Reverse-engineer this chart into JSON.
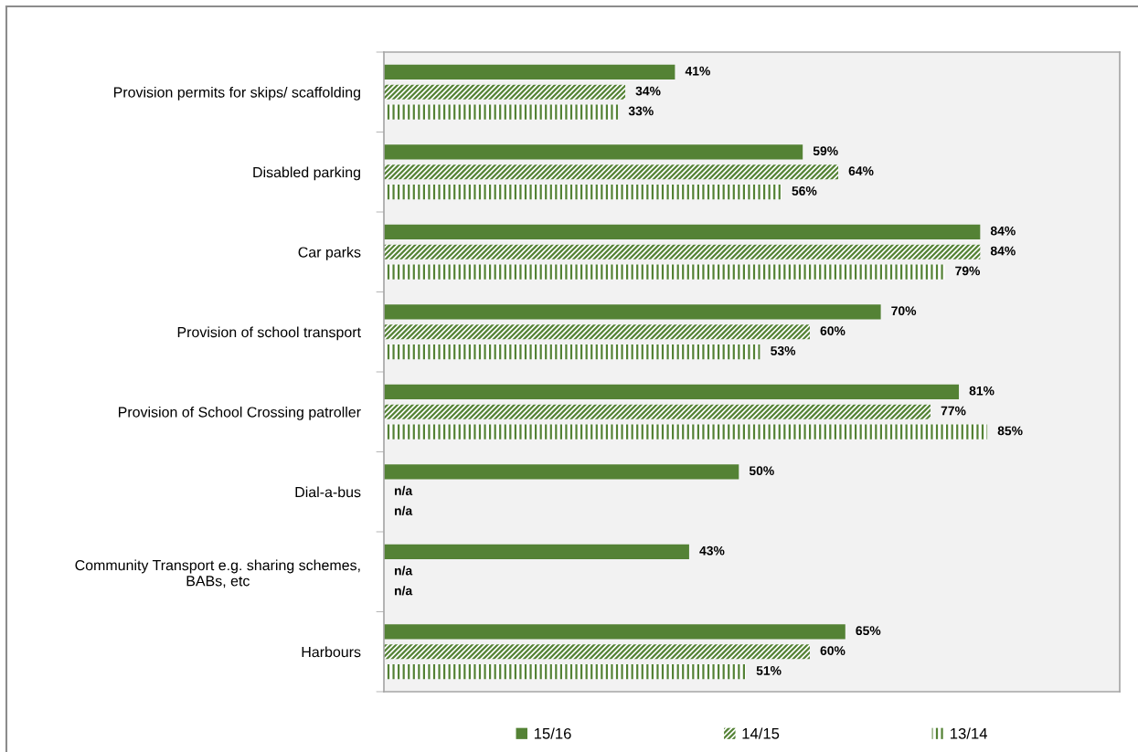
{
  "chart_data": {
    "type": "bar",
    "orientation": "horizontal",
    "categories": [
      "Provision permits for skips/ scaffolding",
      "Disabled parking",
      "Car parks",
      "Provision of school transport",
      "Provision of School Crossing patroller",
      "Dial-a-bus",
      "Community Transport e.g. sharing schemes,\nBABs, etc",
      "Harbours"
    ],
    "series": [
      {
        "name": "15/16",
        "color": "#548235",
        "values": [
          41,
          59,
          84,
          70,
          81,
          50,
          43,
          65
        ],
        "value_labels": [
          "41%",
          "59%",
          "84%",
          "70%",
          "81%",
          "50%",
          "43%",
          "65%"
        ]
      },
      {
        "name": "14/15",
        "color": "#548235",
        "values": [
          34,
          64,
          84,
          60,
          77,
          null,
          null,
          60
        ],
        "value_labels": [
          "34%",
          "64%",
          "84%",
          "60%",
          "77%",
          "n/a",
          "n/a",
          "60%"
        ]
      },
      {
        "name": "13/14",
        "color": "#548235",
        "values": [
          33,
          56,
          79,
          53,
          85,
          null,
          null,
          51
        ],
        "value_labels": [
          "33%",
          "56%",
          "79%",
          "53%",
          "85%",
          "n/a",
          "n/a",
          "51%"
        ]
      }
    ],
    "legend": "bottom",
    "tick_labels": "y",
    "grid": false
  }
}
